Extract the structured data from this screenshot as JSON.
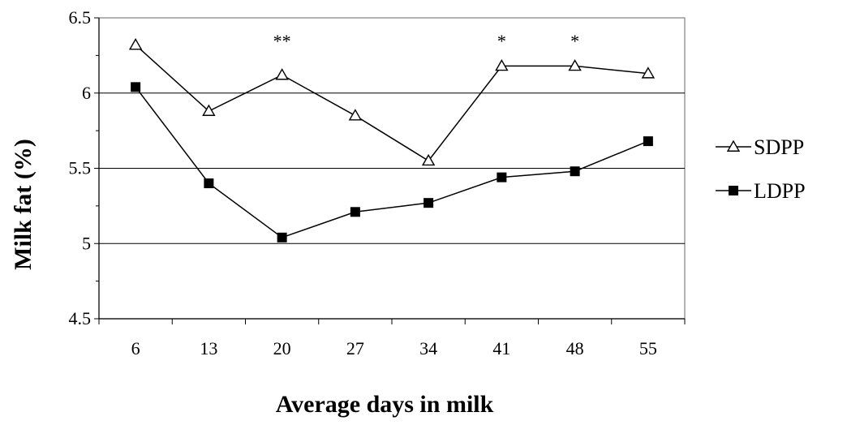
{
  "chart_data": {
    "type": "line",
    "title": "",
    "xlabel": "Average days in milk",
    "ylabel": "Milk fat (%)",
    "x": [
      6,
      13,
      20,
      27,
      34,
      41,
      48,
      55
    ],
    "x_tick_labels": [
      "6",
      "13",
      "20",
      "27",
      "34",
      "41",
      "48",
      "55"
    ],
    "ylim": [
      4.5,
      6.5
    ],
    "y_ticks": [
      4.5,
      5,
      5.5,
      6,
      6.5
    ],
    "y_tick_labels": [
      "4.5",
      "5",
      "5.5",
      "6",
      "6.5"
    ],
    "grid": "horizontal",
    "legend_position": "right",
    "series": [
      {
        "name": "SDPP",
        "marker": "open-triangle",
        "color": "#000000",
        "values": [
          6.32,
          5.88,
          6.12,
          5.85,
          5.55,
          6.18,
          6.18,
          6.13
        ]
      },
      {
        "name": "LDPP",
        "marker": "filled-square",
        "color": "#000000",
        "values": [
          6.04,
          5.4,
          5.04,
          5.21,
          5.27,
          5.44,
          5.48,
          5.68
        ]
      }
    ],
    "annotations": [
      {
        "text": "**",
        "x": 20,
        "y": 6.35
      },
      {
        "text": "*",
        "x": 41,
        "y": 6.35
      },
      {
        "text": "*",
        "x": 48,
        "y": 6.35
      }
    ]
  }
}
